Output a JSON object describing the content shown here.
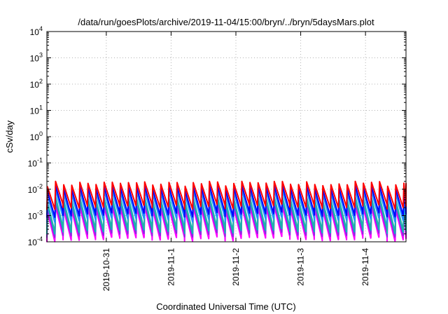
{
  "chart_data": {
    "type": "line",
    "title": "/data/run/goesPlots/archive/2019-11-04/15:00/bryn/../bryn/5daysMars.plot",
    "xlabel": "Coordinated Universal Time (UTC)",
    "ylabel": "cSv/day",
    "xlim": [
      "2019-10-30T02:00",
      "2019-11-04T15:00"
    ],
    "ylim": [
      0.0001,
      10000
    ],
    "yscale": "log",
    "grid": true,
    "legend": "none",
    "x_ticks": [
      {
        "date": "2019-10-31",
        "label": "2019-10-31"
      },
      {
        "date": "2019-11-01",
        "label": "2019-11-1"
      },
      {
        "date": "2019-11-02",
        "label": "2019-11-2"
      },
      {
        "date": "2019-11-03",
        "label": "2019-11-3"
      },
      {
        "date": "2019-11-04",
        "label": "2019-11-4"
      }
    ],
    "y_ticks": [
      {
        "value": 0.0001,
        "base": "10",
        "exp": "-4"
      },
      {
        "value": 0.001,
        "base": "10",
        "exp": "-3"
      },
      {
        "value": 0.01,
        "base": "10",
        "exp": "-2"
      },
      {
        "value": 0.1,
        "base": "10",
        "exp": "-1"
      },
      {
        "value": 1,
        "base": "10",
        "exp": "0"
      },
      {
        "value": 10,
        "base": "10",
        "exp": "1"
      },
      {
        "value": 100,
        "base": "10",
        "exp": "2"
      },
      {
        "value": 1000,
        "base": "10",
        "exp": "3"
      },
      {
        "value": 10000,
        "base": "10",
        "exp": "4"
      }
    ],
    "series_pattern": "sawtooth: rises sharply to the peak about every 3 hours, then decays until the next rise",
    "cycle_hours": 3,
    "series": [
      {
        "color": "#ff0000",
        "peak": 0.016,
        "trough": 0.0022
      },
      {
        "color": "#0000ff",
        "peak": 0.011,
        "trough": 0.0011
      },
      {
        "color": "#1e90ff",
        "peak": 0.0075,
        "trough": 0.0007
      },
      {
        "color": "#20b2aa",
        "peak": 0.0042,
        "trough": 0.0003
      },
      {
        "color": "#00bfbf",
        "peak": 0.0036,
        "trough": 0.00026
      },
      {
        "color": "#8a2be2",
        "peak": 0.0026,
        "trough": 0.00019
      },
      {
        "color": "#ff00ff",
        "peak": 0.0018,
        "trough": 0.00013
      }
    ]
  }
}
